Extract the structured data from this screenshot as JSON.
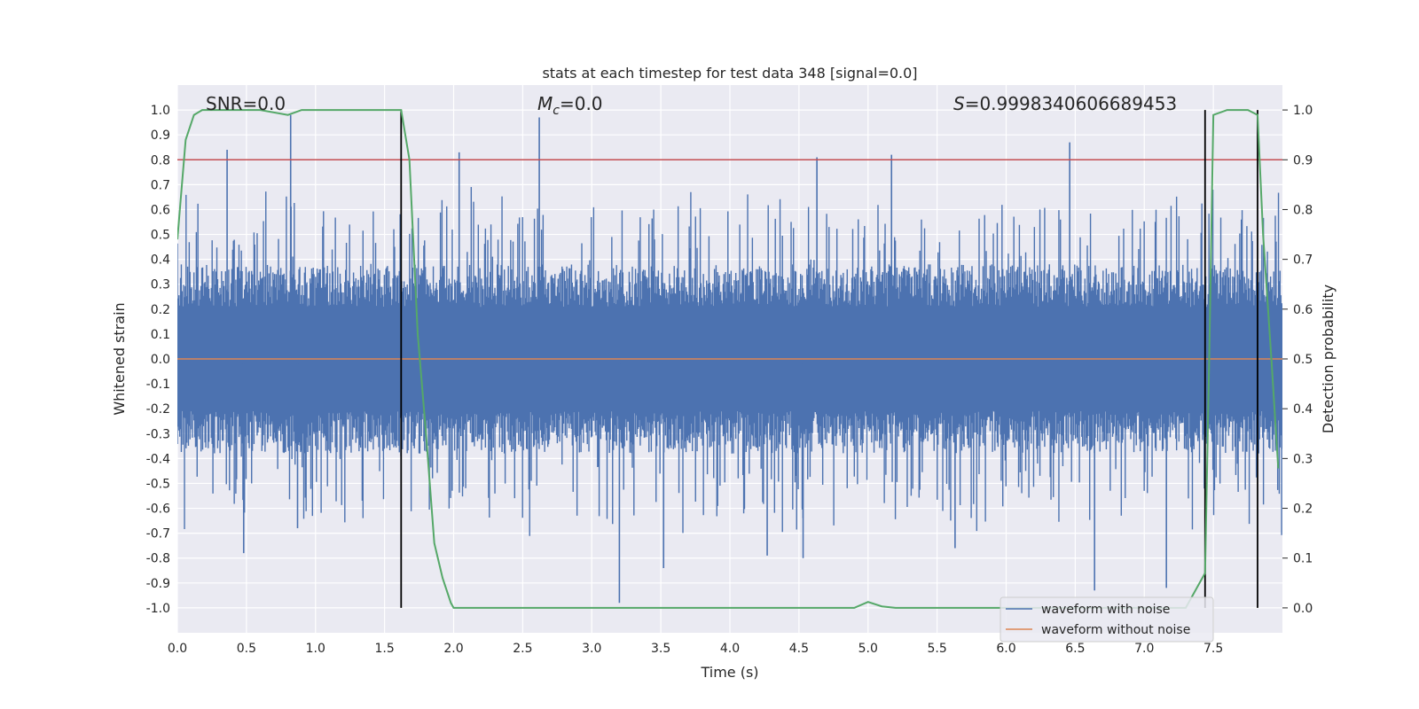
{
  "colors": {
    "background": "#ffffff",
    "plot_bg": "#eaeaf2",
    "grid": "#ffffff",
    "noisy": "#4c72b0",
    "clean": "#dd8452",
    "probability": "#55a868",
    "threshold": "#c44e52",
    "marker": "#000000",
    "text": "#262626"
  },
  "chart_data": {
    "type": "line",
    "title": "stats at each timestep for test data 348 [signal=0.0]",
    "xlabel": "Time (s)",
    "ylabel": "Whitened strain",
    "ylabel_right": "Detection probability",
    "xlim": [
      0,
      8
    ],
    "ylim": [
      -1.1,
      1.1
    ],
    "ylim_right": [
      -0.05,
      1.05
    ],
    "x_ticks": [
      0.0,
      0.5,
      1.0,
      1.5,
      2.0,
      2.5,
      3.0,
      3.5,
      4.0,
      4.5,
      5.0,
      5.5,
      6.0,
      6.5,
      7.0,
      7.5
    ],
    "x_tick_labels": [
      "0.0",
      "0.5",
      "1.0",
      "1.5",
      "2.0",
      "2.5",
      "3.0",
      "3.5",
      "4.0",
      "4.5",
      "5.0",
      "5.5",
      "6.0",
      "6.5",
      "7.0",
      "7.5"
    ],
    "y_ticks": [
      -1.0,
      -0.9,
      -0.8,
      -0.7,
      -0.6,
      -0.5,
      -0.4,
      -0.3,
      -0.2,
      -0.1,
      0.0,
      0.1,
      0.2,
      0.3,
      0.4,
      0.5,
      0.6,
      0.7,
      0.8,
      0.9,
      1.0
    ],
    "y_tick_labels": [
      "-1.0",
      "-0.9",
      "-0.8",
      "-0.7",
      "-0.6",
      "-0.5",
      "-0.4",
      "-0.3",
      "-0.2",
      "-0.1",
      "0.0",
      "0.1",
      "0.2",
      "0.3",
      "0.4",
      "0.5",
      "0.6",
      "0.7",
      "0.8",
      "0.9",
      "1.0"
    ],
    "y_right_ticks": [
      0.0,
      0.1,
      0.2,
      0.3,
      0.4,
      0.5,
      0.6,
      0.7,
      0.8,
      0.9,
      1.0
    ],
    "y_right_tick_labels": [
      "0.0",
      "0.1",
      "0.2",
      "0.3",
      "0.4",
      "0.5",
      "0.6",
      "0.7",
      "0.8",
      "0.9",
      "1.0"
    ],
    "annotations": {
      "snr": "SNR=0.0",
      "mc_symbol": "M",
      "mc_sub": "c",
      "mc_value": "=0.0",
      "s_symbol": "S",
      "s_value": "=0.9998340606689453"
    },
    "legend": {
      "location": "lower-right",
      "entries": [
        "waveform with noise",
        "waveform without noise"
      ]
    },
    "series": [
      {
        "name": "waveform with noise",
        "axis": "left",
        "style": "dense-noise",
        "n_samples": 1400,
        "typical_max": 0.38,
        "typical_min": -0.38,
        "spikes": [
          {
            "x": 0.36,
            "y": 0.84
          },
          {
            "x": 0.82,
            "y": 0.98
          },
          {
            "x": 2.04,
            "y": 0.83
          },
          {
            "x": 2.62,
            "y": 0.97
          },
          {
            "x": 4.63,
            "y": 0.81
          },
          {
            "x": 5.17,
            "y": 0.82
          },
          {
            "x": 6.46,
            "y": 0.87
          },
          {
            "x": 0.48,
            "y": -0.78
          },
          {
            "x": 0.87,
            "y": -0.68
          },
          {
            "x": 3.2,
            "y": -0.98
          },
          {
            "x": 3.52,
            "y": -0.84
          },
          {
            "x": 4.27,
            "y": -0.79
          },
          {
            "x": 4.53,
            "y": -0.8
          },
          {
            "x": 5.63,
            "y": -0.76
          },
          {
            "x": 6.64,
            "y": -0.93
          },
          {
            "x": 7.16,
            "y": -0.92
          }
        ]
      },
      {
        "name": "waveform without noise",
        "axis": "left",
        "x": [
          0,
          8
        ],
        "y": [
          0.0,
          0.0
        ]
      },
      {
        "name": "detection probability",
        "axis": "right",
        "x": [
          0.0,
          0.06,
          0.12,
          0.18,
          0.3,
          0.6,
          0.8,
          0.9,
          1.0,
          1.4,
          1.56,
          1.62,
          1.68,
          1.74,
          1.8,
          1.86,
          1.92,
          1.98,
          2.0,
          2.5,
          3.0,
          3.5,
          4.0,
          4.5,
          4.9,
          5.0,
          5.1,
          5.2,
          6.0,
          7.0,
          7.3,
          7.44,
          7.47,
          7.5,
          7.6,
          7.75,
          7.82,
          7.86,
          7.92,
          7.97
        ],
        "y": [
          0.74,
          0.94,
          0.99,
          1.0,
          1.0,
          1.0,
          0.99,
          1.0,
          1.0,
          1.0,
          1.0,
          1.0,
          0.9,
          0.55,
          0.35,
          0.13,
          0.06,
          0.01,
          0.0,
          0.0,
          0.0,
          0.0,
          0.0,
          0.0,
          0.0,
          0.012,
          0.003,
          0.0,
          0.0,
          0.0,
          0.0,
          0.07,
          0.5,
          0.99,
          1.0,
          1.0,
          0.99,
          0.75,
          0.5,
          0.28
        ]
      },
      {
        "name": "threshold",
        "axis": "right",
        "x": [
          0,
          8
        ],
        "y": [
          0.9,
          0.9
        ]
      }
    ],
    "vertical_markers": [
      {
        "x": 1.62,
        "y_from": 0.0,
        "y_to": 1.0
      },
      {
        "x": 7.44,
        "y_from": 0.0,
        "y_to": 1.0
      },
      {
        "x": 7.82,
        "y_from": 0.0,
        "y_to": 1.0
      }
    ]
  }
}
